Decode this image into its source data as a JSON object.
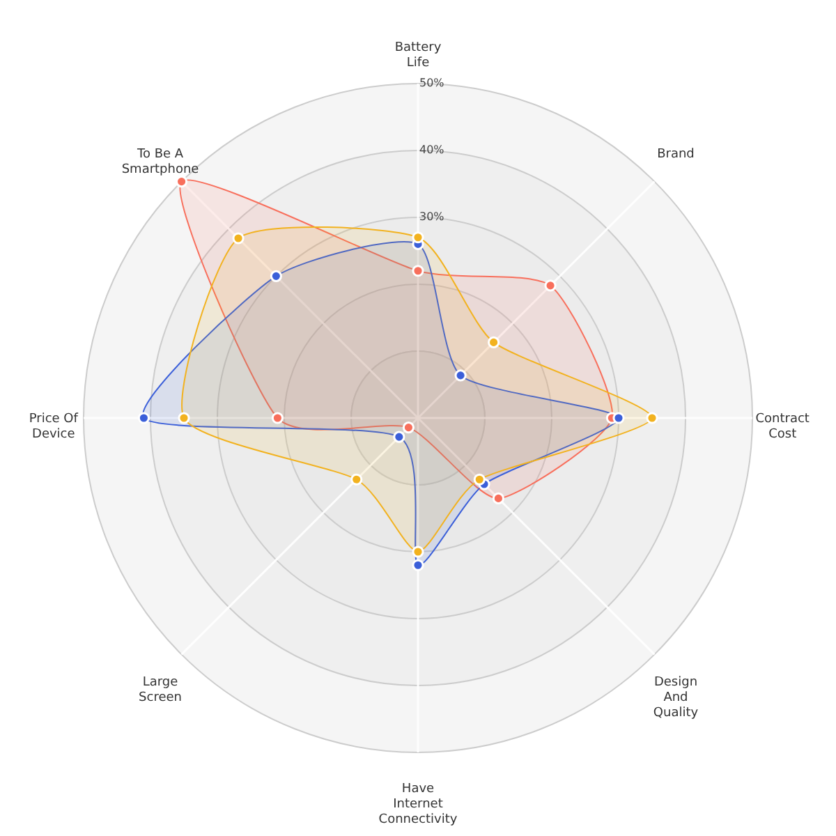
{
  "chart_data": {
    "type": "radar",
    "categories": [
      "Battery\nLife",
      "Brand",
      "Contract\nCost",
      "Design\nAnd\nQuality",
      "Have\nInternet\nConnectivity",
      "Large\nScreen",
      "Price Of\nDevice",
      "To Be A\nSmartphone"
    ],
    "series": [
      {
        "color": "#f86f5c",
        "values": [
          22,
          28,
          29,
          17,
          null,
          2,
          21,
          50
        ]
      },
      {
        "color": "#3b5fd9",
        "values": [
          26,
          9,
          30,
          14,
          22,
          4,
          41,
          30
        ]
      },
      {
        "color": "#f2b21f",
        "values": [
          27,
          16,
          35,
          13,
          20,
          13,
          35,
          38
        ]
      }
    ],
    "ylim": [
      0,
      50
    ],
    "yticks": [
      {
        "value": 30,
        "label": "30%"
      },
      {
        "value": 40,
        "label": "40%"
      },
      {
        "value": 50,
        "label": "50%"
      }
    ],
    "grid": true,
    "marker": "circle"
  }
}
